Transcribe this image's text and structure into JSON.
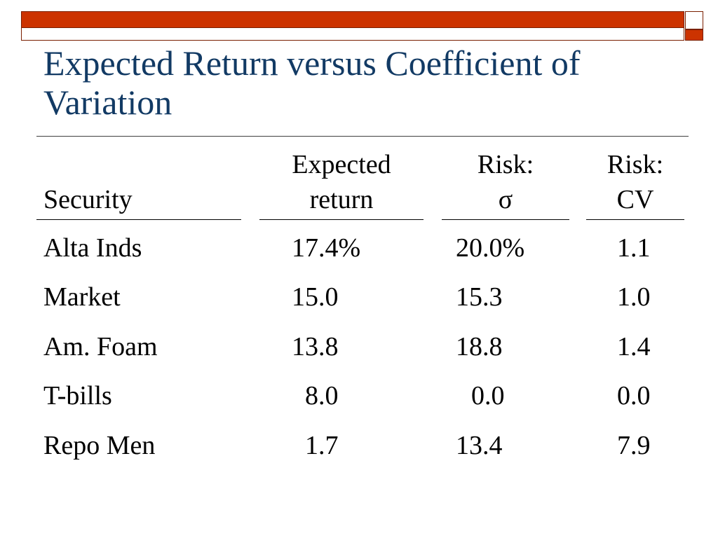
{
  "slide": {
    "title": "Expected Return versus Coefficient of Variation"
  },
  "table": {
    "headers": {
      "security": "Security",
      "expected_line1": "Expected",
      "expected_line2": "return",
      "risk_sigma_line1": "Risk:",
      "risk_sigma_line2": "σ",
      "risk_cv_line1": "Risk:",
      "risk_cv_line2": "CV"
    },
    "rows": [
      {
        "security": "Alta Inds",
        "expected_return": "17.4%",
        "risk_sigma": "20.0%",
        "risk_cv": "1.1"
      },
      {
        "security": "Market",
        "expected_return": "15.0",
        "risk_sigma": "15.3",
        "risk_cv": "1.0"
      },
      {
        "security": "Am. Foam",
        "expected_return": "13.8",
        "risk_sigma": "18.8",
        "risk_cv": "1.4"
      },
      {
        "security": "T-bills",
        "expected_return": "8.0",
        "risk_sigma": "0.0",
        "risk_cv": "0.0"
      },
      {
        "security": "Repo Men",
        "expected_return": "1.7",
        "risk_sigma": "13.4",
        "risk_cv": "7.9"
      }
    ]
  },
  "colors": {
    "accent_bar": "#cc3300",
    "title_text": "#123a64"
  }
}
